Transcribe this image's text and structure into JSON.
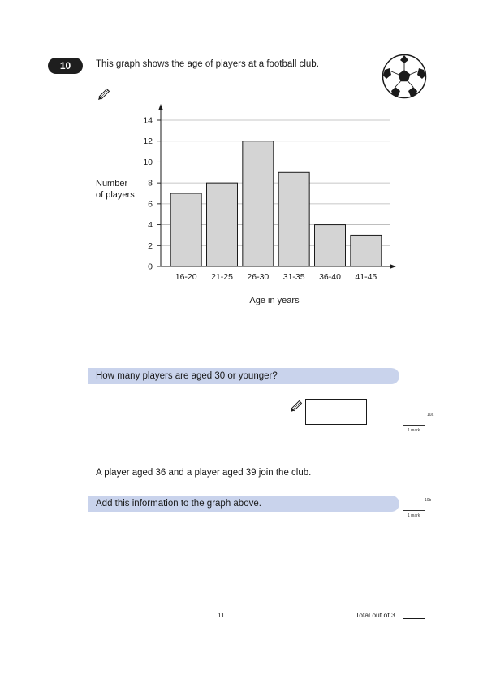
{
  "question": {
    "number": "10",
    "intro": "This graph shows the age of players at a football club."
  },
  "chart_data": {
    "type": "bar",
    "categories": [
      "16-20",
      "21-25",
      "26-30",
      "31-35",
      "36-40",
      "41-45"
    ],
    "values": [
      7,
      8,
      12,
      9,
      4,
      3
    ],
    "title": "",
    "xlabel": "Age in years",
    "ylabel_lines": [
      "Number",
      "of players"
    ],
    "ylim": [
      0,
      14
    ],
    "yticks": [
      0,
      2,
      4,
      6,
      8,
      10,
      12,
      14
    ],
    "grid": true,
    "bar_color": "#d4d4d4"
  },
  "part_a": {
    "prompt": "How many players are aged 30 or younger?",
    "ref": "10a",
    "mark": "1 mark"
  },
  "part_b": {
    "stem": "A player aged 36 and a player aged 39 join the club.",
    "prompt": "Add this information to the graph above.",
    "ref": "10b",
    "mark": "1 mark"
  },
  "footer": {
    "page_number": "11",
    "total_label": "Total out of 3"
  },
  "colors": {
    "prompt_bar": "#c9d3ec",
    "question_badge": "#1e1e1e"
  }
}
